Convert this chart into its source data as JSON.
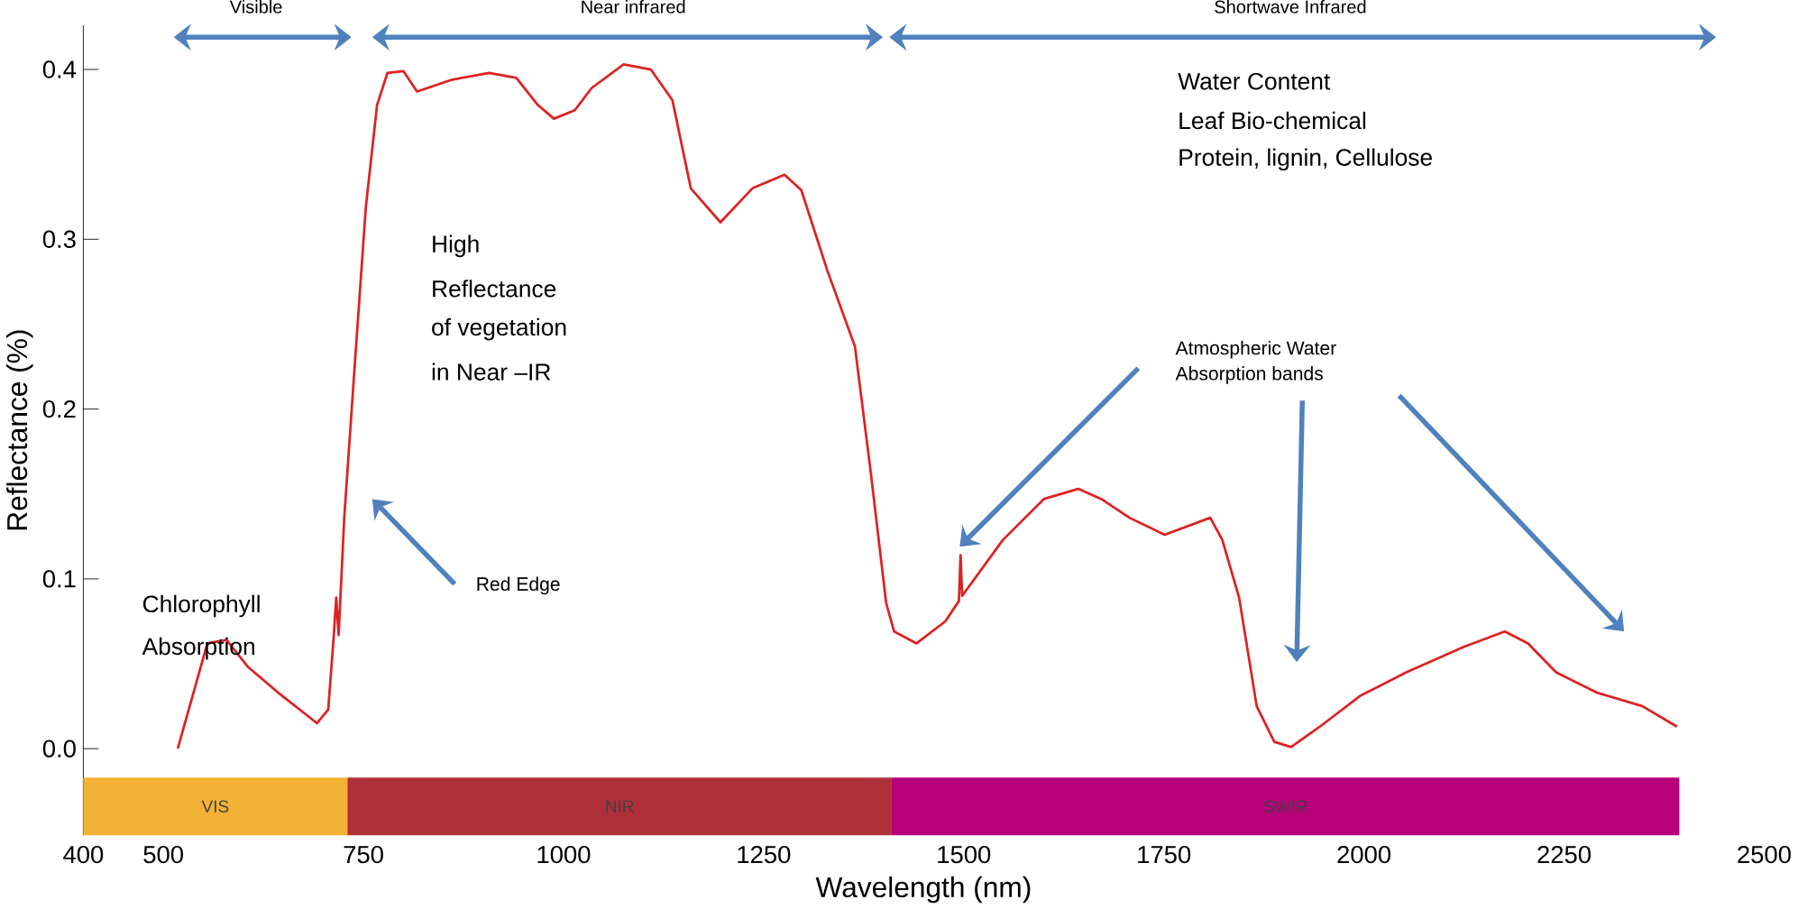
{
  "chart_data": {
    "type": "line",
    "xlabel": "Wavelength (nm)",
    "ylabel": "Reflectance (%)",
    "x": [
      518,
      555,
      579,
      606,
      646,
      692,
      706,
      713,
      716,
      719,
      726,
      739,
      753,
      767,
      780,
      800,
      817,
      861,
      907,
      941,
      968,
      988,
      1014,
      1035,
      1075,
      1109,
      1136,
      1159,
      1196,
      1236,
      1276,
      1297,
      1330,
      1364,
      1384,
      1403,
      1413,
      1441,
      1477,
      1494,
      1496,
      1498,
      1549,
      1600,
      1643,
      1672,
      1707,
      1751,
      1808,
      1823,
      1844,
      1866,
      1888,
      1909,
      1945,
      1995,
      2053,
      2125,
      2176,
      2205,
      2240,
      2291,
      2348,
      2391
    ],
    "series": [
      {
        "color": "#dd2222",
        "values": [
          0.0,
          0.062,
          0.064,
          0.048,
          0.032,
          0.015,
          0.023,
          0.067,
          0.089,
          0.067,
          0.136,
          0.225,
          0.319,
          0.379,
          0.398,
          0.399,
          0.387,
          0.394,
          0.398,
          0.395,
          0.379,
          0.371,
          0.376,
          0.389,
          0.403,
          0.4,
          0.382,
          0.33,
          0.31,
          0.33,
          0.338,
          0.329,
          0.281,
          0.237,
          0.162,
          0.086,
          0.069,
          0.062,
          0.075,
          0.087,
          0.114,
          0.09,
          0.123,
          0.147,
          0.153,
          0.147,
          0.136,
          0.126,
          0.136,
          0.123,
          0.089,
          0.025,
          0.004,
          0.001,
          0.013,
          0.031,
          0.045,
          0.06,
          0.069,
          0.062,
          0.045,
          0.033,
          0.025,
          0.013
        ]
      }
    ],
    "xlim": [
      400,
      2500
    ],
    "ylim": [
      -0.051,
      0.426
    ],
    "xticks": [
      400,
      500,
      750,
      1000,
      1250,
      1500,
      1750,
      2000,
      2250,
      2500
    ],
    "yticks": [
      {
        "value": 0,
        "label": "0.0"
      },
      0.1,
      0.2,
      0.3,
      0.4
    ],
    "bands": [
      {
        "axis": "x",
        "from": 400,
        "to": 730,
        "label": "VIS",
        "color": "#f2b233"
      },
      {
        "axis": "x",
        "from": 730,
        "to": 1410,
        "label": "NIR",
        "color": "#b0303a"
      },
      {
        "axis": "x",
        "from": 1410,
        "to": 2394,
        "label": "SWIR",
        "color": "#b8007a"
      }
    ],
    "annotations": [
      "Visible",
      "Near infrared",
      "Shortwave  Infrared",
      "Chlorophyll",
      "Absorption",
      "High",
      "Reflectance",
      "of vegetation",
      "in Near –IR",
      "Red Edge",
      "Water Content",
      "Leaf Bio-chemical",
      "Protein, lignin,  Cellulose",
      "Atmospheric Water",
      "Absorption bands"
    ]
  }
}
